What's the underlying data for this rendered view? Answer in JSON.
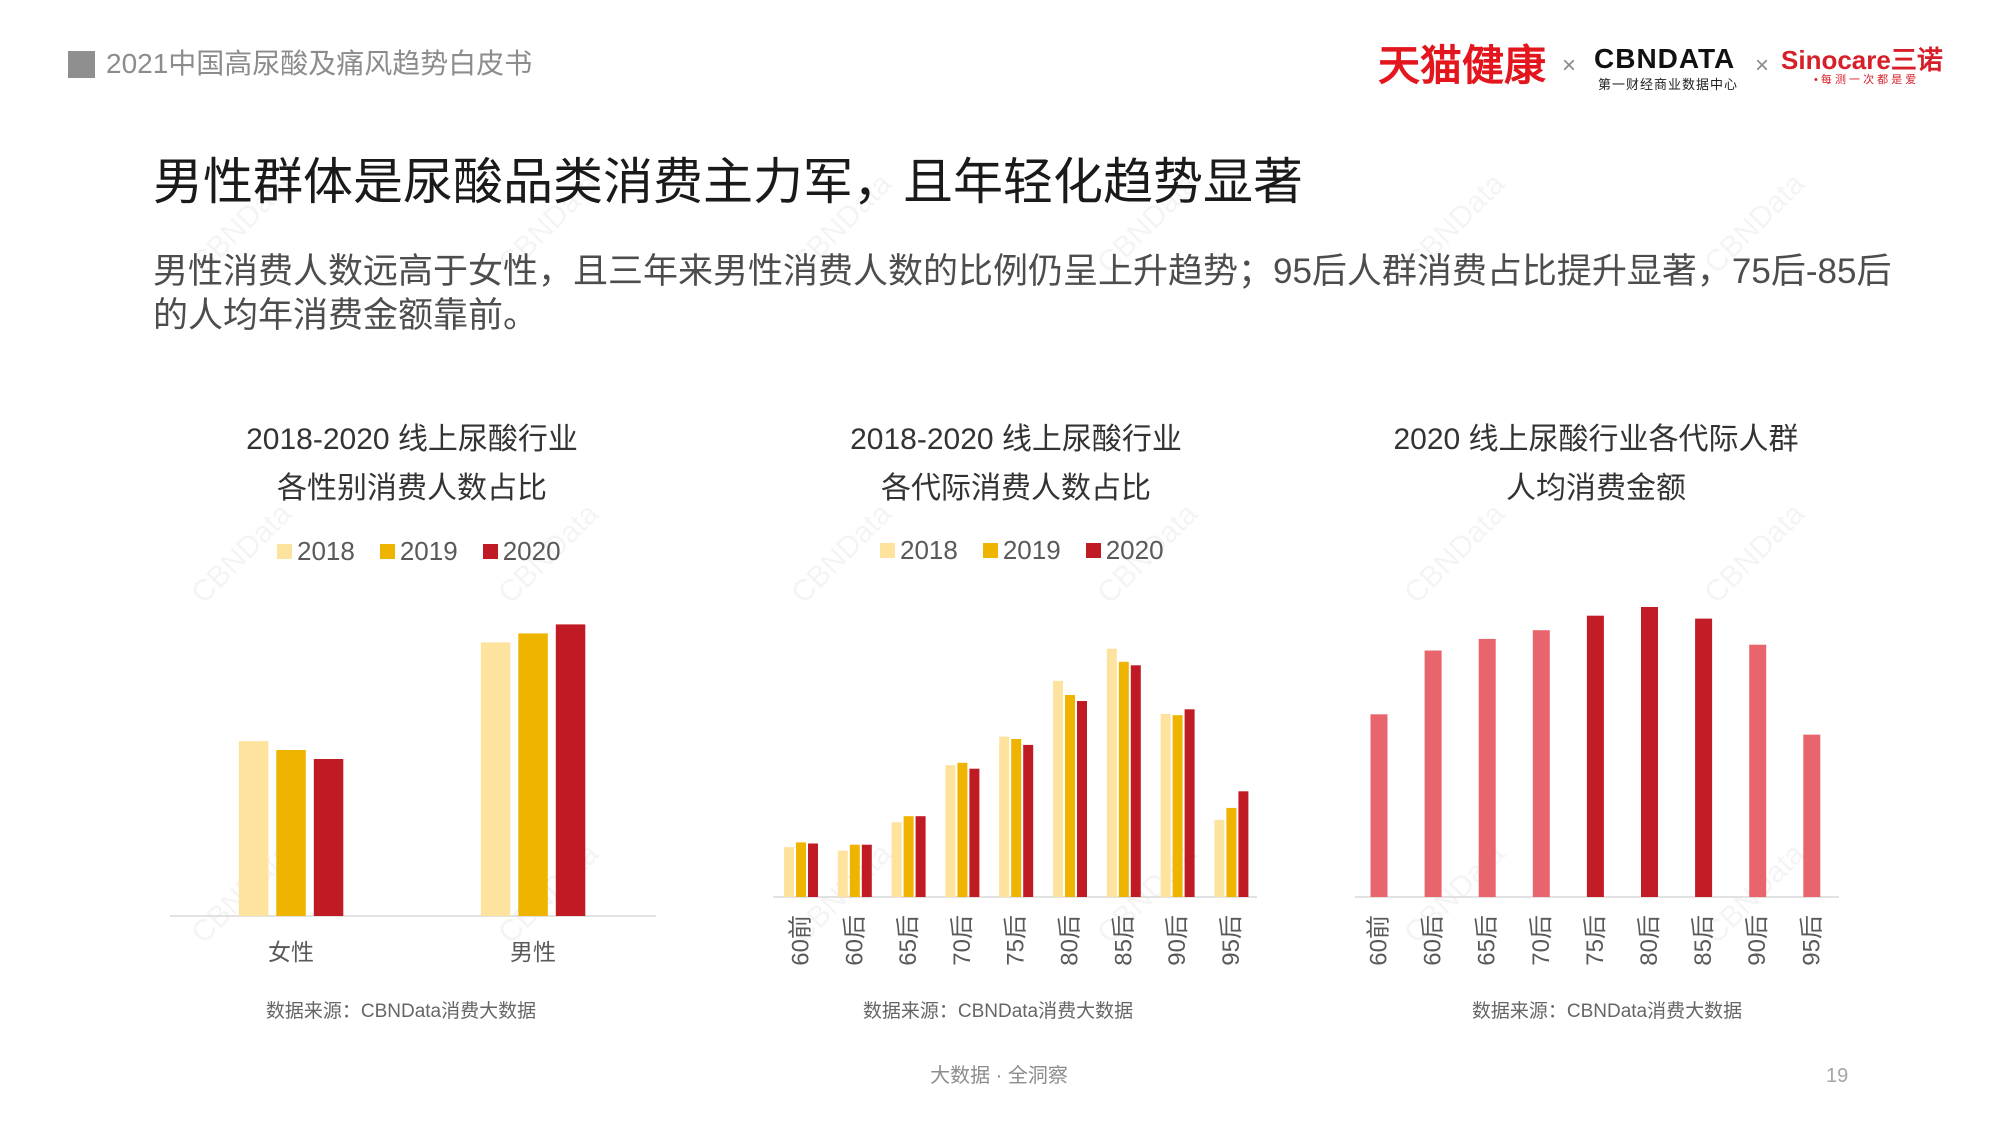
{
  "header": {
    "report_title": "2021中国高尿酸及痛风趋势白皮书"
  },
  "logos": {
    "tmall": "天猫健康",
    "cross": "×",
    "cbndata": "CBNDATA",
    "cbndata_sub": "第一财经商业数据中心",
    "sinocare": "Sinocare三诺",
    "sinocare_sub": "• 每 测 一 次 都 是 爱"
  },
  "slide": {
    "title": "男性群体是尿酸品类消费主力军，且年轻化趋势显著",
    "summary_lines": [
      "男性消费人数远高于女性，且三年来男性消费人数的比例仍呈上升趋势；95后人群消费占比提升显著，75后-85后",
      "的人均年消费金额靠前。"
    ]
  },
  "watermark": "CBNData",
  "chart_data": [
    {
      "type": "bar",
      "title": [
        "2018-2020 线上尿酸行业",
        "各性别消费人数占比"
      ],
      "categories": [
        "女性",
        "男性"
      ],
      "series": [
        {
          "name": "2018",
          "values": [
            39,
            61
          ],
          "color": "#fde39e"
        },
        {
          "name": "2019",
          "values": [
            37,
            63
          ],
          "color": "#efb400"
        },
        {
          "name": "2020",
          "values": [
            35,
            65
          ],
          "color": "#c01b25"
        }
      ],
      "ylim": [
        0,
        70
      ],
      "grid": false,
      "legend": "top",
      "source": "数据来源：CBNData消费大数据"
    },
    {
      "type": "bar",
      "title": [
        "2018-2020 线上尿酸行业",
        "各代际消费人数占比"
      ],
      "categories": [
        "60前",
        "60后",
        "65后",
        "70后",
        "75后",
        "80后",
        "85后",
        "90后",
        "95后"
      ],
      "series": [
        {
          "name": "2018",
          "values": [
            4.2,
            3.9,
            6.3,
            11.1,
            13.5,
            18.2,
            20.9,
            15.4,
            6.5
          ],
          "color": "#fde39e"
        },
        {
          "name": "2019",
          "values": [
            4.6,
            4.4,
            6.8,
            11.3,
            13.3,
            17.0,
            19.8,
            15.3,
            7.5
          ],
          "color": "#efb400"
        },
        {
          "name": "2020",
          "values": [
            4.5,
            4.4,
            6.8,
            10.8,
            12.8,
            16.5,
            19.5,
            15.8,
            8.9
          ],
          "color": "#c01b25"
        }
      ],
      "ylim": [
        0,
        25
      ],
      "grid": false,
      "legend": "top",
      "source": "数据来源：CBNData消费大数据"
    },
    {
      "type": "bar",
      "title": [
        "2020 线上尿酸行业各代际人群",
        "人均消费金额"
      ],
      "categories": [
        "60前",
        "60后",
        "65后",
        "70后",
        "75后",
        "80后",
        "85后",
        "90后",
        "95后"
      ],
      "values": [
        63,
        85,
        89,
        92,
        97,
        100,
        96,
        87,
        56
      ],
      "bar_colors": [
        "#e8656d",
        "#e8656d",
        "#e8656d",
        "#e8656d",
        "#c21c27",
        "#c21c27",
        "#c21c27",
        "#e8656d",
        "#e8656d"
      ],
      "ylim": [
        0,
        100
      ],
      "grid": false,
      "legend": "none",
      "source": "数据来源：CBNData消费大数据"
    }
  ],
  "footer": {
    "slogan": "大数据 · 全洞察",
    "page_number": "19"
  }
}
